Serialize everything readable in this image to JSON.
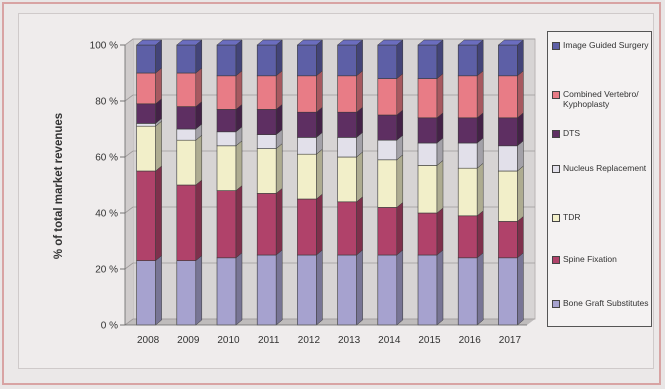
{
  "chart_data": {
    "type": "bar",
    "stacked": true,
    "percent": true,
    "title": "",
    "xlabel": "",
    "ylabel": "% of total market revenues",
    "ylim": [
      0,
      100
    ],
    "yticks": [
      "0 %",
      "20 %",
      "40 %",
      "60 %",
      "80 %",
      "100 %"
    ],
    "grid": true,
    "legend_position": "right",
    "categories": [
      "2008",
      "2009",
      "2010",
      "2011",
      "2012",
      "2013",
      "2014",
      "2015",
      "2016",
      "2017"
    ],
    "series": [
      {
        "name": "Bone Graft Substitutes",
        "color": "#a6a2cf",
        "values": [
          23,
          23,
          24,
          25,
          25,
          25,
          25,
          25,
          24,
          24
        ]
      },
      {
        "name": "Spine Fixation",
        "color": "#b0426a",
        "values": [
          32,
          27,
          24,
          22,
          20,
          19,
          17,
          15,
          15,
          13
        ]
      },
      {
        "name": "TDR",
        "color": "#f2efc9",
        "values": [
          16,
          16,
          16,
          16,
          16,
          16,
          17,
          17,
          17,
          18
        ]
      },
      {
        "name": "Nucleus Replacement",
        "color": "#e2e0ea",
        "values": [
          1,
          4,
          5,
          5,
          6,
          7,
          7,
          8,
          9,
          9
        ]
      },
      {
        "name": "DTS",
        "color": "#5e2f62",
        "values": [
          7,
          8,
          8,
          9,
          9,
          9,
          9,
          9,
          9,
          10
        ]
      },
      {
        "name": "Combined Vertebro/Kyphoplasty",
        "color": "#e87c86",
        "values": [
          11,
          12,
          12,
          12,
          13,
          13,
          13,
          14,
          15,
          15
        ]
      },
      {
        "name": "Image Guided Surgery",
        "color": "#5d5fa6",
        "values": [
          10,
          10,
          11,
          11,
          11,
          11,
          12,
          12,
          11,
          11
        ]
      }
    ]
  },
  "legend": {
    "items": [
      "Image Guided Surgery",
      "Combined Vertebro/ Kyphoplasty",
      "DTS",
      "Nucleus Replacement",
      "TDR",
      "Spine Fixation",
      "Bone Graft Substitutes"
    ]
  }
}
